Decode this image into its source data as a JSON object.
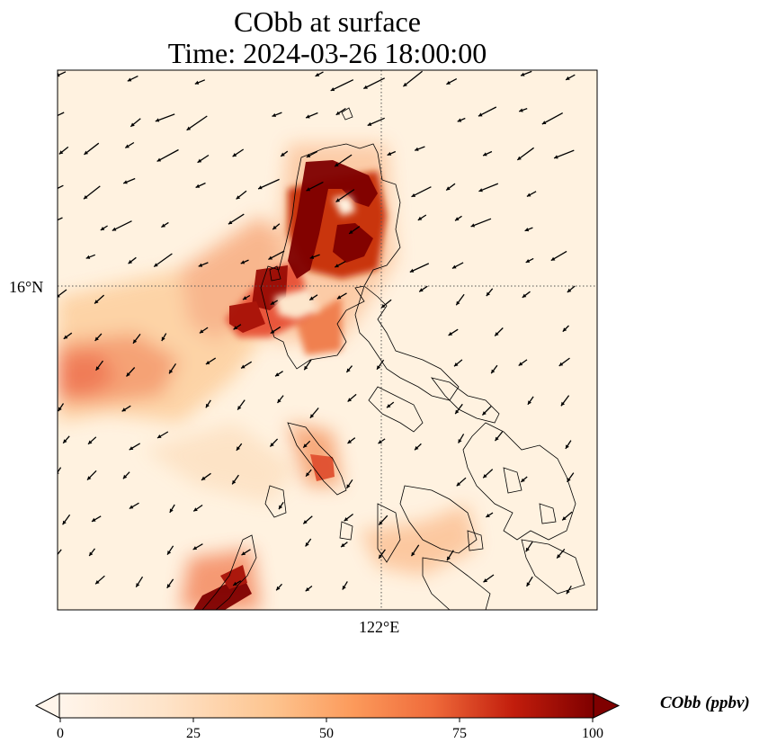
{
  "title_line1": "CObb at surface",
  "title_line2": "Time: 2024-03-26 18:00:00",
  "axes": {
    "lat_label": "16°N",
    "lon_label": "122°E",
    "gridline_style": "dotted"
  },
  "colorbar": {
    "label": "CObb (ppbv)",
    "ticks": [
      "0",
      "25",
      "50",
      "75",
      "100"
    ],
    "range": [
      0,
      100
    ],
    "extend": "both",
    "colormap": [
      "#fff5eb",
      "#fdd8b3",
      "#fda762",
      "#f36d2b",
      "#c9340b",
      "#7f0000"
    ]
  },
  "plume_colors": {
    "dark": "#7f0000",
    "mid": "#f08050",
    "light": "#fdd0a0",
    "background": "#fff2e0"
  },
  "layers": [
    "CObb concentration field",
    "wind vectors",
    "coastlines"
  ]
}
